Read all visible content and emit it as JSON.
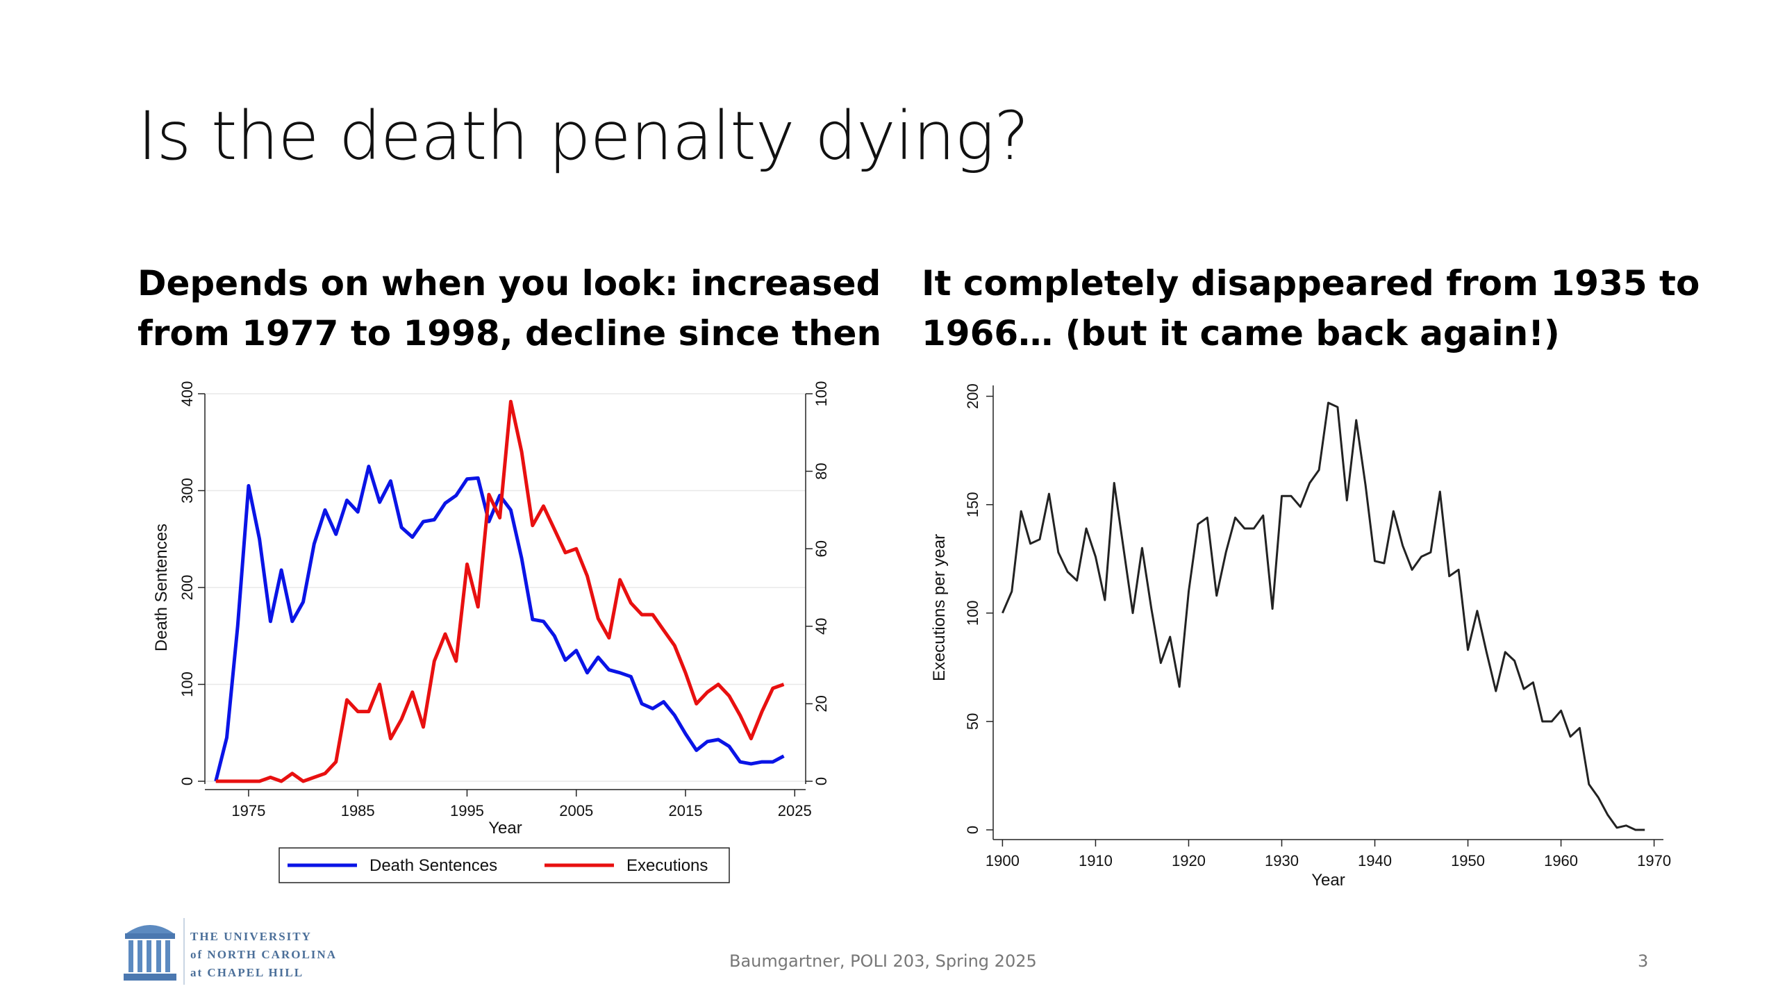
{
  "slide": {
    "title": "Is the death penalty dying?",
    "left_heading": [
      "Depends on when you look: increased",
      "from 1977 to 1998, decline since then"
    ],
    "right_heading": [
      "It completely disappeared from 1935 to",
      "1966… (but it came back again!)"
    ]
  },
  "footer": {
    "logo_lines": [
      "THE UNIVERSITY",
      "of NORTH CAROLINA",
      "at CHAPEL HILL"
    ],
    "citation": "Baumgartner, POLI 203, Spring 2025",
    "page_number": "3"
  },
  "chart_data": [
    {
      "type": "line",
      "xlabel": "Year",
      "ylabel": "Death Sentences",
      "y2label": "Executions",
      "xlim": [
        1971,
        2026
      ],
      "ylim": [
        0,
        400
      ],
      "y2lim": [
        0,
        100
      ],
      "xticks": [
        1975,
        1985,
        1995,
        2005,
        2015,
        2025
      ],
      "yticks": [
        0,
        100,
        200,
        300,
        400
      ],
      "y2ticks": [
        0,
        20,
        40,
        60,
        80,
        100
      ],
      "grid": "horizontal",
      "legend_position": "bottom",
      "x": [
        1972,
        1973,
        1974,
        1975,
        1976,
        1977,
        1978,
        1979,
        1980,
        1981,
        1982,
        1983,
        1984,
        1985,
        1986,
        1987,
        1988,
        1989,
        1990,
        1991,
        1992,
        1993,
        1994,
        1995,
        1996,
        1997,
        1998,
        1999,
        2000,
        2001,
        2002,
        2003,
        2004,
        2005,
        2006,
        2007,
        2008,
        2009,
        2010,
        2011,
        2012,
        2013,
        2014,
        2015,
        2016,
        2017,
        2018,
        2019,
        2020,
        2021,
        2022,
        2023,
        2024
      ],
      "series": [
        {
          "name": "Death Sentences",
          "color": "#0a14e6",
          "axis": "left",
          "values": [
            0,
            45,
            160,
            305,
            250,
            165,
            218,
            165,
            185,
            245,
            280,
            255,
            290,
            278,
            325,
            288,
            310,
            262,
            252,
            268,
            270,
            287,
            295,
            312,
            313,
            268,
            295,
            280,
            230,
            167,
            165,
            150,
            125,
            135,
            112,
            128,
            115,
            112,
            108,
            80,
            75,
            82,
            68,
            49,
            32,
            41,
            43,
            36,
            20,
            18,
            20,
            20,
            26
          ]
        },
        {
          "name": "Executions",
          "color": "#e81010",
          "axis": "right",
          "values": [
            0,
            0,
            0,
            0,
            0,
            1,
            0,
            2,
            0,
            1,
            2,
            5,
            21,
            18,
            18,
            25,
            11,
            16,
            23,
            14,
            31,
            38,
            31,
            56,
            45,
            74,
            68,
            98,
            85,
            66,
            71,
            65,
            59,
            60,
            53,
            42,
            37,
            52,
            46,
            43,
            43,
            39,
            35,
            28,
            20,
            23,
            25,
            22,
            17,
            11,
            18,
            24,
            25
          ]
        }
      ]
    },
    {
      "type": "line",
      "xlabel": "Year",
      "ylabel": "Executions per year",
      "xlim": [
        1899,
        1971
      ],
      "ylim": [
        0,
        205
      ],
      "xticks": [
        1900,
        1910,
        1920,
        1930,
        1940,
        1950,
        1960,
        1970
      ],
      "yticks": [
        0,
        50,
        100,
        150,
        200
      ],
      "grid": "off",
      "x": [
        1900,
        1901,
        1902,
        1903,
        1904,
        1905,
        1906,
        1907,
        1908,
        1909,
        1910,
        1911,
        1912,
        1913,
        1914,
        1915,
        1916,
        1917,
        1918,
        1919,
        1920,
        1921,
        1922,
        1923,
        1924,
        1925,
        1926,
        1927,
        1928,
        1929,
        1930,
        1931,
        1932,
        1933,
        1934,
        1935,
        1936,
        1937,
        1938,
        1939,
        1940,
        1941,
        1942,
        1943,
        1944,
        1945,
        1946,
        1947,
        1948,
        1949,
        1950,
        1951,
        1952,
        1953,
        1954,
        1955,
        1956,
        1957,
        1958,
        1959,
        1960,
        1961,
        1962,
        1963,
        1964,
        1965,
        1966,
        1967,
        1968,
        1969
      ],
      "series": [
        {
          "name": "",
          "color": "#222222",
          "axis": "left",
          "values": [
            100,
            110,
            147,
            132,
            134,
            155,
            128,
            119,
            115,
            139,
            126,
            106,
            160,
            130,
            100,
            130,
            102,
            77,
            89,
            66,
            110,
            141,
            144,
            108,
            128,
            144,
            139,
            139,
            145,
            102,
            154,
            154,
            149,
            160,
            166,
            197,
            195,
            152,
            189,
            159,
            124,
            123,
            147,
            131,
            120,
            126,
            128,
            156,
            117,
            120,
            83,
            101,
            82,
            64,
            82,
            78,
            65,
            68,
            50,
            50,
            55,
            43,
            47,
            21,
            15,
            7,
            1,
            2,
            0,
            0
          ]
        }
      ]
    }
  ]
}
